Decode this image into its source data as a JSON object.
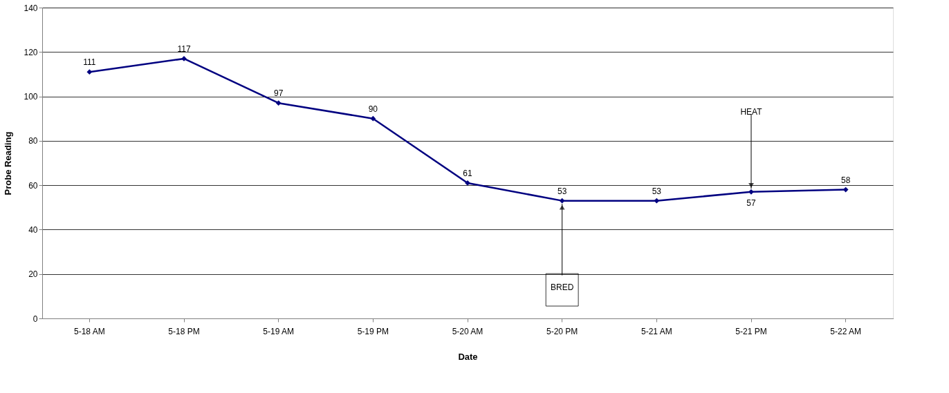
{
  "chart_data": {
    "type": "line",
    "xlabel": "Date",
    "ylabel": "Probe Reading",
    "categories": [
      "5-18 AM",
      "5-18 PM",
      "5-19 AM",
      "5-19 PM",
      "5-20 AM",
      "5-20 PM",
      "5-21 AM",
      "5-21 PM",
      "5-22 AM"
    ],
    "series": [
      {
        "color": "#000080",
        "values": [
          111,
          117,
          97,
          90,
          61,
          53,
          53,
          57,
          58
        ]
      }
    ],
    "ylim": [
      0,
      140
    ],
    "yticks": [
      0,
      20,
      40,
      60,
      80,
      100,
      120,
      140
    ],
    "grid": "y",
    "marker": "diamond",
    "line_style": "solid",
    "data_labels": true,
    "annotations": [
      {
        "text": "BRED",
        "x": "5-20 PM",
        "y": 53
      },
      {
        "text": "HEAT",
        "x": "5-21 PM",
        "y": 57
      }
    ]
  }
}
